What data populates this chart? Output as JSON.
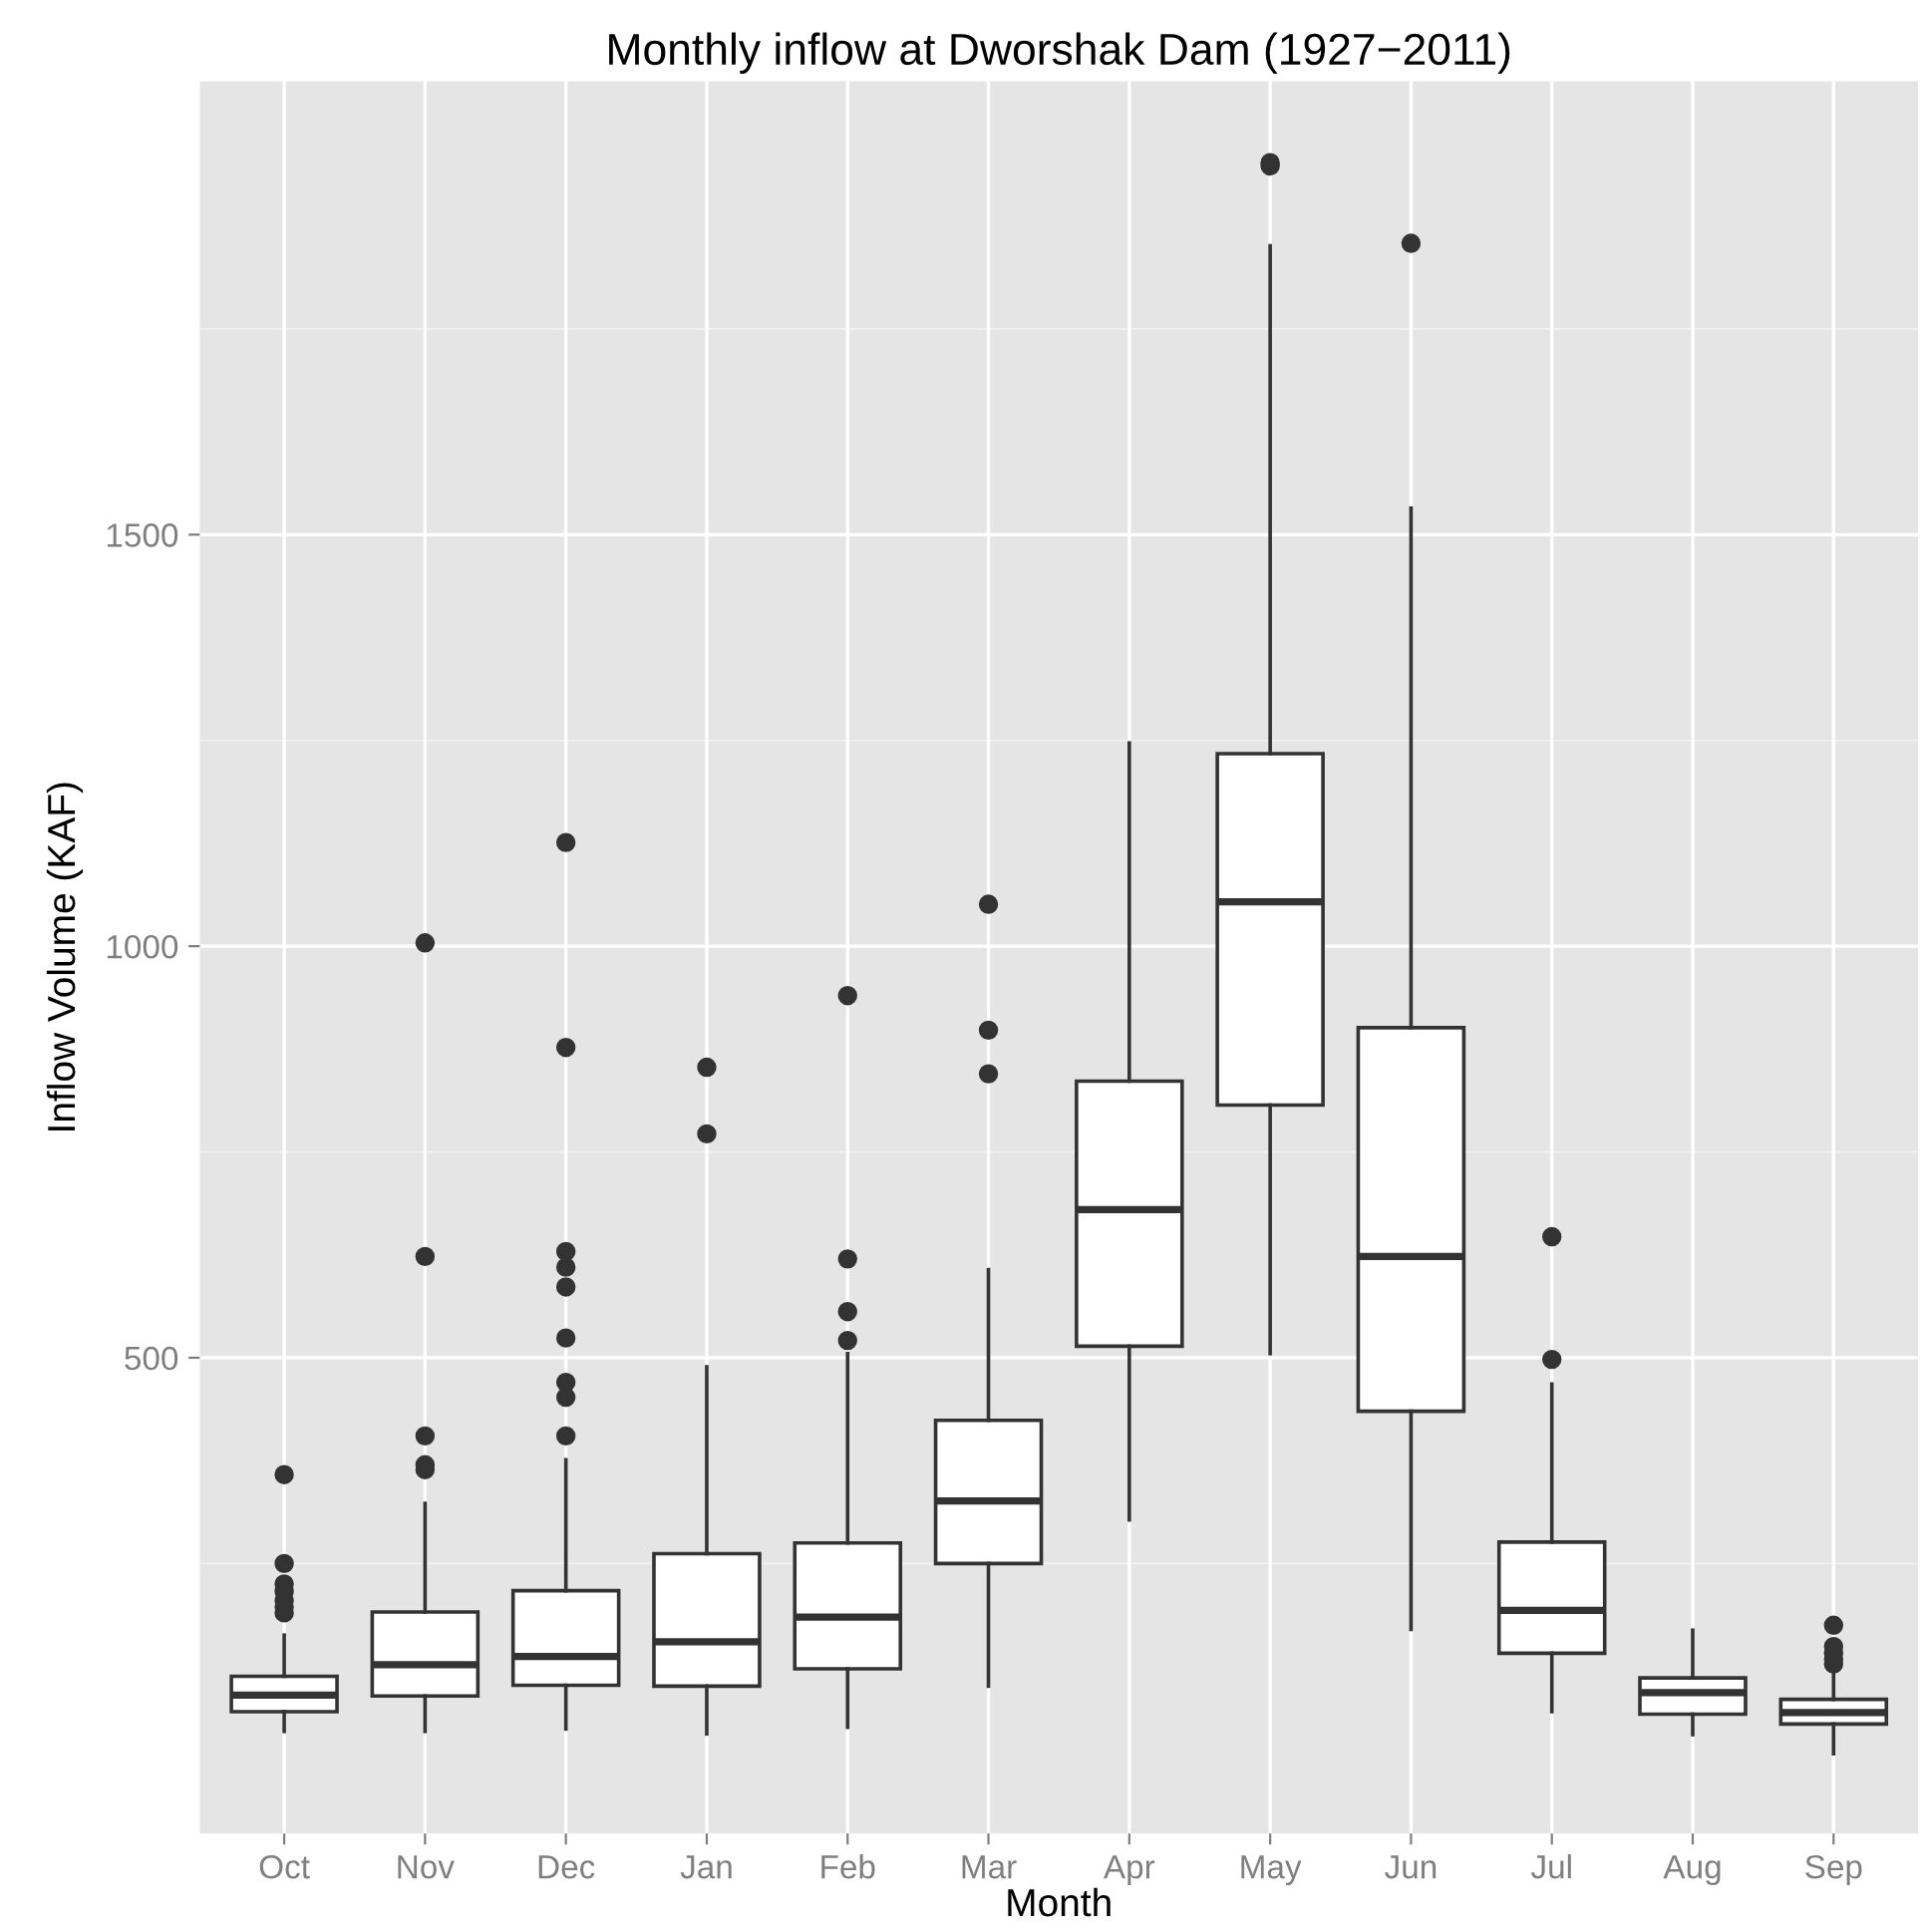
{
  "chart_data": {
    "type": "box",
    "title": "Monthly inflow at Dworshak Dam (1927−2011)",
    "xlabel": "Month",
    "ylabel": "Inflow Volume (KAF)",
    "categories": [
      "Oct",
      "Nov",
      "Dec",
      "Jan",
      "Feb",
      "Mar",
      "Apr",
      "May",
      "Jun",
      "Jul",
      "Aug",
      "Sep"
    ],
    "ylim": [
      -78,
      2051
    ],
    "yticks": [
      {
        "value": 250,
        "label": null
      },
      500,
      {
        "value": 750,
        "label": null
      },
      1000,
      {
        "value": 1250,
        "label": null
      },
      1500,
      {
        "value": 1750,
        "label": null
      }
    ],
    "grid": true,
    "boxes": [
      {
        "low": 46,
        "q1": 70,
        "median": 90,
        "q3": 113,
        "high": 163,
        "outliers": [
          190,
          197,
          205,
          216,
          225,
          250,
          358
        ]
      },
      {
        "low": 46,
        "q1": 89,
        "median": 127,
        "q3": 191,
        "high": 323,
        "outliers": [
          364,
          370,
          405,
          623,
          1004
        ]
      },
      {
        "low": 49,
        "q1": 102,
        "median": 137,
        "q3": 217,
        "high": 376,
        "outliers": [
          405,
          452,
          470,
          524,
          586,
          610,
          629,
          877,
          1126
        ]
      },
      {
        "low": 43,
        "q1": 101,
        "median": 155,
        "q3": 262,
        "high": 489,
        "outliers": [
          772,
          853
        ]
      },
      {
        "low": 51,
        "q1": 122,
        "median": 185,
        "q3": 275,
        "high": 505,
        "outliers": [
          521,
          556,
          620,
          940
        ]
      },
      {
        "low": 101,
        "q1": 250,
        "median": 326,
        "q3": 424,
        "high": 607,
        "outliers": [
          845,
          898,
          1051
        ]
      },
      {
        "low": 303,
        "q1": 514,
        "median": 680,
        "q3": 836,
        "high": 1247
      },
      {
        "low": 505,
        "q1": 807,
        "median": 1054,
        "q3": 1234,
        "high": 1851,
        "outliers": [
          1948,
          1952
        ]
      },
      {
        "low": 170,
        "q1": 435,
        "median": 623,
        "q3": 901,
        "high": 1532,
        "outliers": [
          1854
        ]
      },
      {
        "low": 70,
        "q1": 141,
        "median": 193,
        "q3": 276,
        "high": 468,
        "outliers": [
          498,
          647
        ]
      },
      {
        "low": 42,
        "q1": 67,
        "median": 93,
        "q3": 111,
        "high": 169
      },
      {
        "low": 19,
        "q1": 55,
        "median": 69,
        "q3": 85,
        "high": 116,
        "outliers": [
          128,
          134,
          141,
          149,
          175
        ]
      }
    ]
  }
}
